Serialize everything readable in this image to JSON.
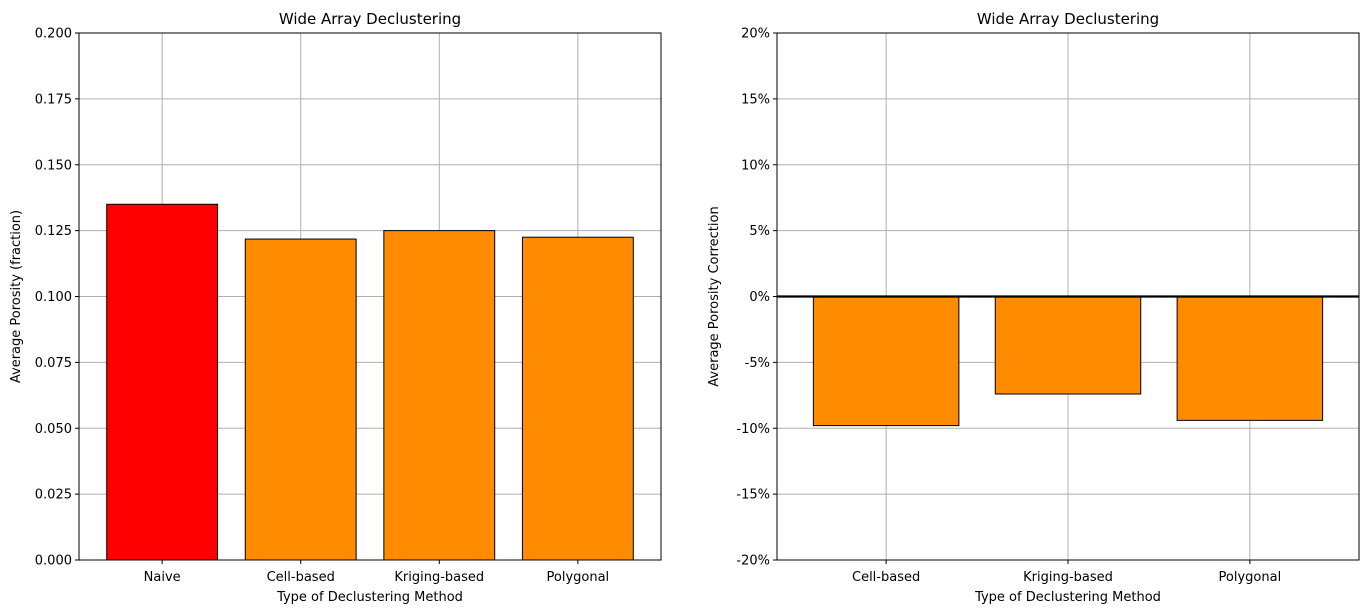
{
  "chart_data": [
    {
      "type": "bar",
      "title": "Wide Array Declustering",
      "xlabel": "Type of Declustering Method",
      "ylabel": "Average Porosity (fraction)",
      "categories": [
        "Naive",
        "Cell-based",
        "Kriging-based",
        "Polygonal"
      ],
      "values": [
        0.135,
        0.1218,
        0.125,
        0.1225
      ],
      "bar_colors": [
        "#ff0000",
        "#ff8c00",
        "#ff8c00",
        "#ff8c00"
      ],
      "ylim": [
        0,
        0.2
      ],
      "yticks": [
        0,
        0.025,
        0.05,
        0.075,
        0.1,
        0.125,
        0.15,
        0.175,
        0.2
      ],
      "ytick_labels": [
        "0.000",
        "0.025",
        "0.050",
        "0.075",
        "0.100",
        "0.125",
        "0.150",
        "0.175",
        "0.200"
      ],
      "grid": true
    },
    {
      "type": "bar",
      "title": "Wide Array Declustering",
      "xlabel": "Type of Declustering Method",
      "ylabel": "Average Porosity Correction",
      "categories": [
        "Cell-based",
        "Kriging-based",
        "Polygonal"
      ],
      "values": [
        -9.8,
        -7.4,
        -9.4
      ],
      "bar_colors": [
        "#ff8c00",
        "#ff8c00",
        "#ff8c00"
      ],
      "ylim": [
        -20,
        20
      ],
      "yticks": [
        -20,
        -15,
        -10,
        -5,
        0,
        5,
        10,
        15,
        20
      ],
      "ytick_labels": [
        "-20%",
        "-15%",
        "-10%",
        "-5%",
        "0%",
        "5%",
        "10%",
        "15%",
        "20%"
      ],
      "zero_line": true,
      "grid": true
    }
  ]
}
